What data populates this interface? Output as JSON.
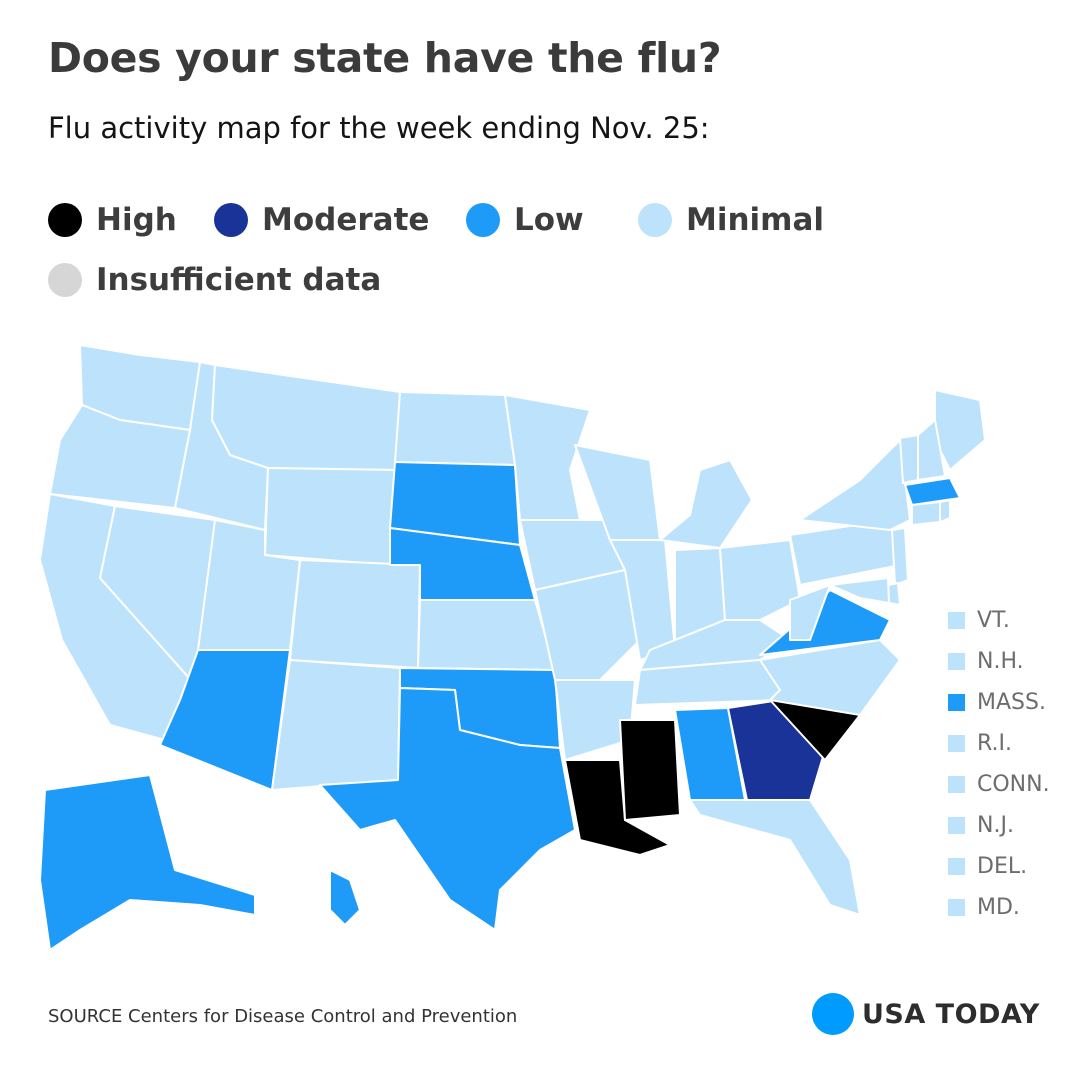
{
  "header": {
    "title": "Does your state have the flu?",
    "subtitle": "Flu activity map for the week ending Nov. 25:"
  },
  "legend": [
    {
      "label": "High",
      "color": "#000000"
    },
    {
      "label": "Moderate",
      "color": "#1a3399"
    },
    {
      "label": "Low",
      "color": "#1e9bf9"
    },
    {
      "label": "Minimal",
      "color": "#bde2fc"
    },
    {
      "label": "Insufficient data",
      "color": "#d6d6d6"
    }
  ],
  "levels": {
    "high": "#000000",
    "moderate": "#1a3399",
    "low": "#1e9bf9",
    "minimal": "#bde2fc"
  },
  "states": {
    "WA": "minimal",
    "OR": "minimal",
    "CA": "minimal",
    "ID": "minimal",
    "NV": "minimal",
    "MT": "minimal",
    "WY": "minimal",
    "UT": "minimal",
    "AZ": "low",
    "CO": "minimal",
    "NM": "minimal",
    "ND": "minimal",
    "SD": "low",
    "NE": "low",
    "KS": "minimal",
    "OK": "low",
    "TX": "low",
    "MN": "minimal",
    "IA": "minimal",
    "MO": "minimal",
    "AR": "minimal",
    "LA": "high",
    "WI": "minimal",
    "IL": "minimal",
    "MI": "minimal",
    "IN": "minimal",
    "OH": "minimal",
    "KY": "minimal",
    "TN": "minimal",
    "MS": "high",
    "AL": "low",
    "GA": "moderate",
    "FL": "minimal",
    "SC": "high",
    "NC": "minimal",
    "VA": "low",
    "WV": "minimal",
    "PA": "minimal",
    "NY": "minimal",
    "ME": "minimal",
    "AK": "low",
    "HI": "low"
  },
  "small_states": [
    {
      "label": "VT.",
      "level": "minimal"
    },
    {
      "label": "N.H.",
      "level": "minimal"
    },
    {
      "label": "MASS.",
      "level": "low"
    },
    {
      "label": "R.I.",
      "level": "minimal"
    },
    {
      "label": "CONN.",
      "level": "minimal"
    },
    {
      "label": "N.J.",
      "level": "minimal"
    },
    {
      "label": "DEL.",
      "level": "minimal"
    },
    {
      "label": "MD.",
      "level": "minimal"
    }
  ],
  "footer": {
    "source": "SOURCE Centers for Disease Control and Prevention",
    "brand": "USA TODAY",
    "brand_color": "#009bff"
  }
}
